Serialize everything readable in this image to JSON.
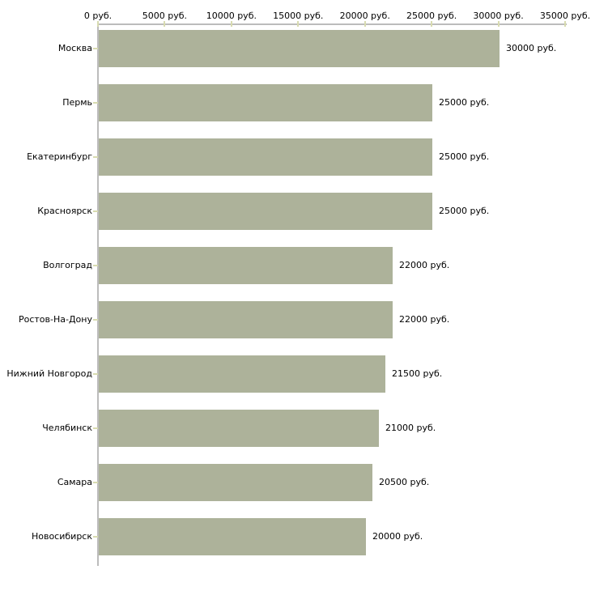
{
  "chart_data": {
    "type": "bar",
    "orientation": "horizontal",
    "title": "",
    "xlabel": "",
    "ylabel": "",
    "unit": "руб.",
    "grid": false,
    "legend": false,
    "categories": [
      "Москва",
      "Пермь",
      "Екатеринбург",
      "Красноярск",
      "Волгоград",
      "Ростов-На-Дону",
      "Нижний Новгород",
      "Челябинск",
      "Самара",
      "Новосибирск"
    ],
    "values": [
      30000,
      25000,
      25000,
      25000,
      22000,
      22000,
      21500,
      21000,
      20500,
      20000
    ],
    "value_labels": [
      "30000 руб.",
      "25000 руб.",
      "25000 руб.",
      "25000 руб.",
      "22000 руб.",
      "22000 руб.",
      "21500 руб.",
      "21000 руб.",
      "20500 руб.",
      "20000 руб."
    ],
    "x_ticks": [
      0,
      5000,
      10000,
      15000,
      20000,
      25000,
      30000,
      35000
    ],
    "x_tick_labels": [
      "0 руб.",
      "5000 руб.",
      "10000 руб.",
      "15000 руб.",
      "20000 руб.",
      "25000 руб.",
      "30000 руб.",
      "35000 руб."
    ],
    "xlim": [
      0,
      35000
    ],
    "colors": {
      "bar": "#adb29a",
      "axis_line": "#bcbcbc",
      "tick_mark": "#d8dbb0",
      "text": "#000000",
      "background": "#ffffff"
    }
  }
}
